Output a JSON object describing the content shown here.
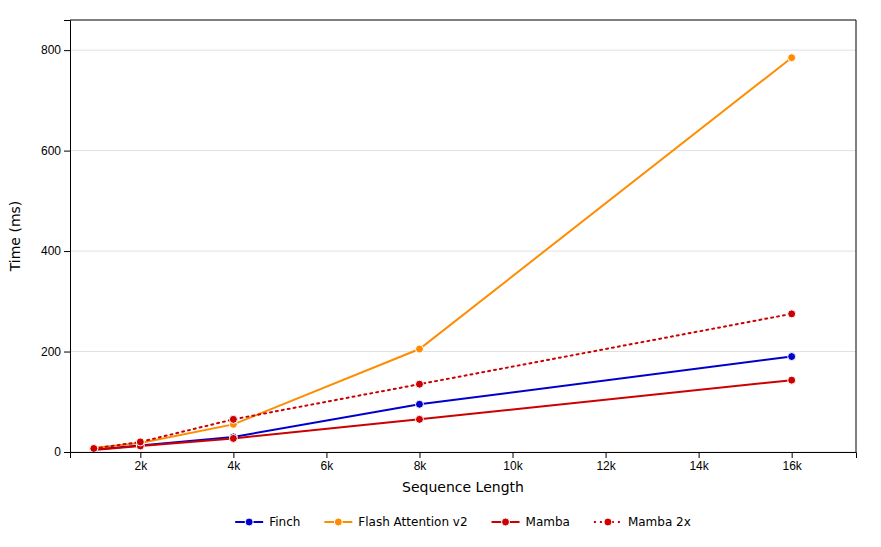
{
  "chart_data": {
    "type": "line",
    "xlabel": "Sequence Length",
    "ylabel": "Time (ms)",
    "x": [
      1024,
      2048,
      4096,
      8192,
      16384
    ],
    "series": [
      {
        "name": "Finch",
        "color": "#0000cc",
        "line_style": "solid",
        "marker": "circle",
        "values": [
          5,
          13,
          30,
          95,
          190
        ]
      },
      {
        "name": "Flash Attention v2",
        "color": "#ff8c00",
        "line_style": "solid",
        "marker": "circle",
        "values": [
          8,
          18,
          55,
          205,
          785
        ]
      },
      {
        "name": "Mamba",
        "color": "#cc0000",
        "line_style": "solid",
        "marker": "circle",
        "values": [
          4,
          12,
          27,
          65,
          143
        ]
      },
      {
        "name": "Mamba 2x",
        "color": "#cc0000",
        "line_style": "dotted",
        "marker": "circle",
        "values": [
          7,
          20,
          65,
          135,
          275
        ]
      }
    ],
    "xlim": [
      500,
      17800
    ],
    "ylim": [
      0,
      860
    ],
    "xticks": [
      {
        "value": 2048,
        "label": "2k"
      },
      {
        "value": 4096,
        "label": "4k"
      },
      {
        "value": 6144,
        "label": "6k"
      },
      {
        "value": 8192,
        "label": "8k"
      },
      {
        "value": 10240,
        "label": "10k"
      },
      {
        "value": 12288,
        "label": "12k"
      },
      {
        "value": 14336,
        "label": "14k"
      },
      {
        "value": 16384,
        "label": "16k"
      }
    ],
    "yticks": [
      0,
      200,
      400,
      600,
      800
    ],
    "grid": "y",
    "legend": "bottom"
  }
}
